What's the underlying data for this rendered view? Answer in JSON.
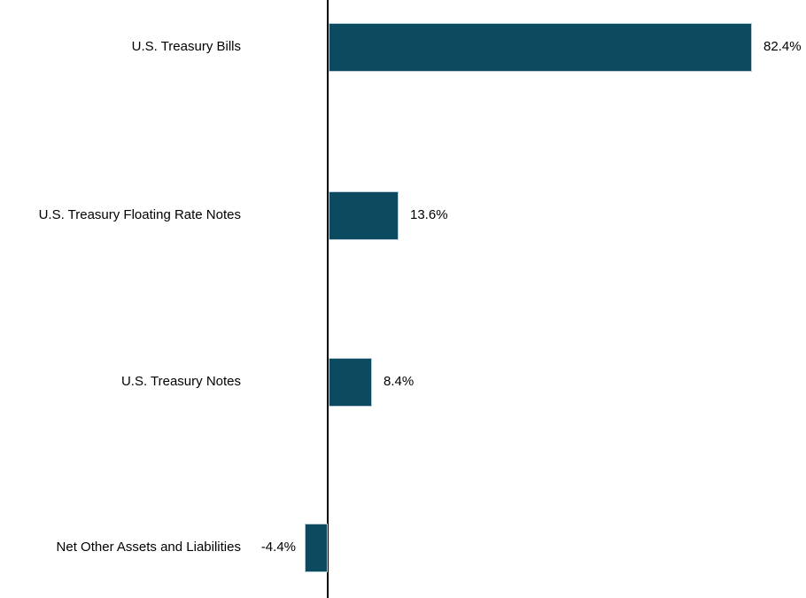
{
  "chart_data": {
    "type": "bar",
    "orientation": "horizontal",
    "title": "",
    "xlabel": "",
    "ylabel": "",
    "categories": [
      "U.S. Treasury Bills",
      "U.S. Treasury Floating Rate Notes",
      "U.S. Treasury Notes",
      "Net Other Assets and Liabilities"
    ],
    "values": [
      82.4,
      13.6,
      8.4,
      -4.4
    ],
    "value_labels": [
      "82.4%",
      "13.6%",
      "8.4%",
      "-4.4%"
    ],
    "unit": "%",
    "baseline": 0,
    "xlim": [
      -5,
      92
    ],
    "grid": false,
    "legend": false,
    "bar_color": "#0c4a5f",
    "bar_border_color": "#b9ced8",
    "axis_color": "#000000"
  }
}
